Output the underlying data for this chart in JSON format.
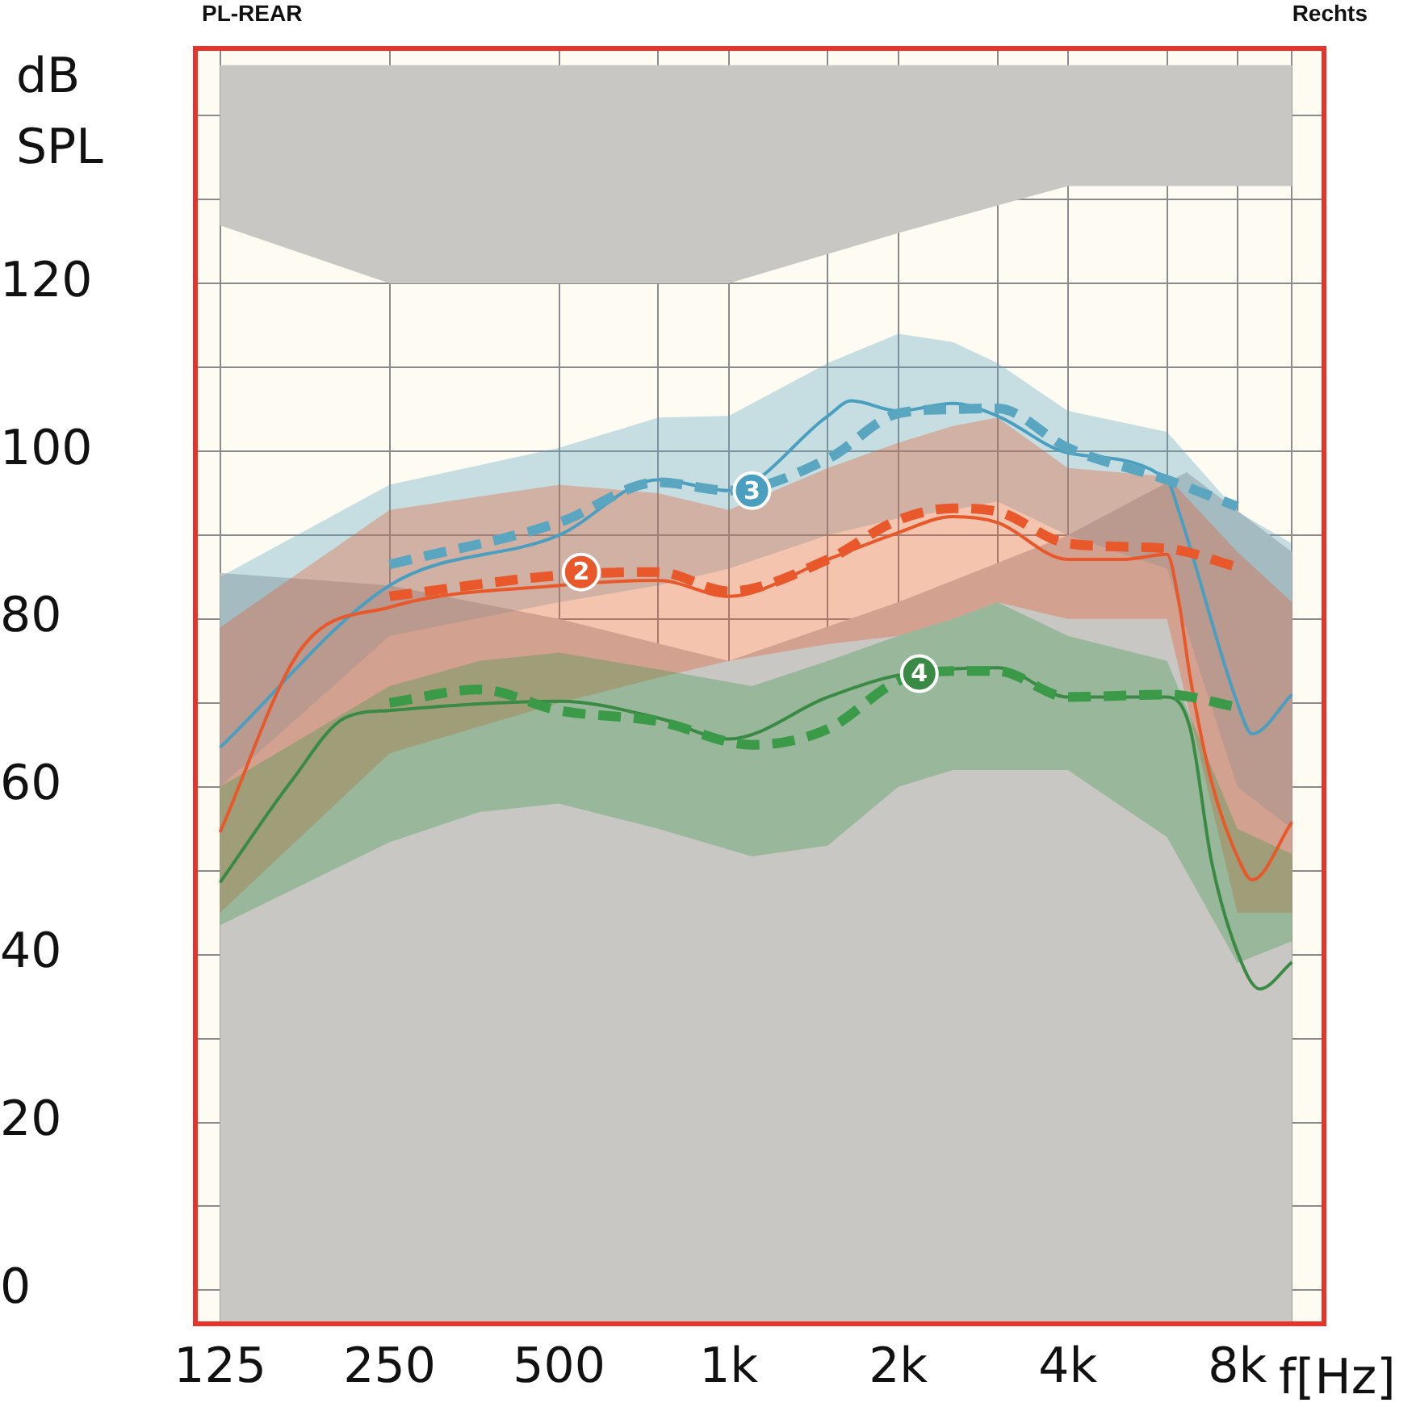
{
  "chart_data": {
    "type": "line",
    "title": "PL-REAR",
    "subtitle": "Rechts",
    "xlabel": "f[Hz]",
    "ylabel": "dB SPL",
    "log": "x",
    "grid": true,
    "legend": false,
    "marker": "none",
    "xlim": [
      113,
      11400
    ],
    "ylim": [
      -4,
      148
    ],
    "xticks": [
      125,
      250,
      500,
      {
        "value": 750,
        "label": null
      },
      {
        "value": 1000,
        "label": "1k"
      },
      {
        "value": 1500,
        "label": null
      },
      {
        "value": 2000,
        "label": "2k"
      },
      {
        "value": 3000,
        "label": null
      },
      {
        "value": 4000,
        "label": "4k"
      },
      {
        "value": 6000,
        "label": null
      },
      {
        "value": 8000,
        "label": "8k"
      },
      {
        "value": 10000,
        "label": null
      }
    ],
    "yticks": [
      0,
      {
        "value": 10,
        "label": null
      },
      20,
      {
        "value": 30,
        "label": null
      },
      40,
      {
        "value": 50,
        "label": null
      },
      60,
      {
        "value": 70,
        "label": null
      },
      80,
      {
        "value": 90,
        "label": null
      },
      100,
      {
        "value": 110,
        "label": null
      },
      120,
      {
        "value": 130,
        "label": null
      },
      {
        "value": 140,
        "label": null
      }
    ],
    "series": [
      {
        "type": "line",
        "color": "#c9c7c3",
        "x": [
          125,
          250,
          1000,
          2000,
          4000,
          10000
        ],
        "values": [
          null,
          null,
          null,
          null,
          null,
          null
        ],
        "lower": [
          126.9,
          120,
          120,
          126,
          131.6,
          131.6
        ],
        "upper": [
          146,
          146,
          146,
          146,
          146,
          146
        ]
      },
      {
        "type": "line",
        "color": "#c9c7c3",
        "x": [
          125,
          250,
          500,
          1000,
          2000,
          4000,
          6500,
          10000
        ],
        "values": [
          null,
          null,
          null,
          null,
          null,
          null,
          null,
          null
        ],
        "lower": [
          -4,
          -4,
          -4,
          -4,
          -4,
          -4,
          -4,
          -4
        ],
        "upper": [
          85.5,
          84,
          80,
          75,
          82,
          90,
          97.5,
          88
        ]
      },
      {
        "color": "#4a9fc0",
        "line_style": "solid",
        "x": [
          125,
          250,
          500,
          750,
          1000,
          1500,
          1650,
          2000,
          2500,
          3000,
          4000,
          6000,
          6300,
          8000,
          8500,
          10000
        ],
        "values": [
          64.7,
          84,
          90,
          96.6,
          95.3,
          104.2,
          106,
          104.8,
          105.7,
          104.2,
          99.8,
          96.6,
          92.8,
          70,
          66.3,
          71
        ]
      },
      {
        "color": "#5aa5c0",
        "line_style": "dashed",
        "x": [
          125,
          250,
          500,
          750,
          1000,
          1500,
          2000,
          2500,
          3000,
          4000,
          6000,
          8000,
          10000
        ],
        "values": [
          null,
          86.5,
          91.5,
          96.3,
          95.3,
          99.1,
          104.5,
          105,
          105.1,
          100.4,
          96.6,
          93.4,
          null
        ],
        "lower": [
          60,
          78,
          82,
          84,
          86,
          90,
          92,
          93,
          94,
          90,
          86,
          60,
          55
        ],
        "upper": [
          85,
          96,
          100.4,
          104,
          104.2,
          110.5,
          114,
          113,
          110.5,
          104.8,
          102.3,
          92.8,
          89
        ]
      },
      {
        "color": "#e8582a",
        "line_style": "solid",
        "x": [
          125,
          174,
          250,
          500,
          750,
          1000,
          1500,
          2000,
          2500,
          3000,
          4000,
          5000,
          6000,
          6300,
          6600,
          7200,
          8000,
          8500,
          10000
        ],
        "values": [
          54.6,
          76.4,
          81.4,
          84,
          84.6,
          82.7,
          87.1,
          90.3,
          92.2,
          91.5,
          87.1,
          87.1,
          87.7,
          82,
          73,
          60.6,
          51.7,
          48.9,
          55.8
        ]
      },
      {
        "color": "#e8582a",
        "line_style": "dashed",
        "x": [
          125,
          250,
          500,
          750,
          1000,
          1500,
          2000,
          2500,
          3000,
          4000,
          6000,
          8000,
          10000
        ],
        "values": [
          null,
          82.7,
          85.2,
          85.6,
          83.3,
          87.1,
          91.8,
          93.2,
          92.8,
          89,
          88.4,
          86.2,
          null
        ],
        "lower": [
          45,
          64,
          70,
          73,
          75,
          77,
          78,
          80,
          82,
          80,
          80,
          45,
          45
        ],
        "upper": [
          79,
          93,
          96,
          95,
          93,
          98,
          101,
          103,
          104,
          98,
          97,
          88,
          82
        ]
      },
      {
        "color": "#3a8a45",
        "line_style": "solid",
        "x": [
          125,
          167,
          208,
          250,
          500,
          750,
          1000,
          1500,
          2000,
          3000,
          4000,
          6000,
          6600,
          7200,
          8000,
          8770,
          10000
        ],
        "values": [
          48.6,
          60.6,
          68.2,
          69.1,
          70.2,
          68.2,
          65.7,
          70.7,
          73.3,
          74.2,
          70.7,
          70.7,
          66.9,
          51.1,
          40.3,
          35.9,
          39.1
        ]
      },
      {
        "color": "#3a9a48",
        "line_style": "dashed",
        "x": [
          125,
          250,
          361,
          500,
          750,
          1100,
          1500,
          2000,
          2500,
          3000,
          4000,
          6000,
          8000,
          10000
        ],
        "values": [
          null,
          70,
          71.6,
          69.1,
          67.8,
          65,
          66.9,
          72.6,
          73.8,
          73.8,
          70.7,
          71,
          69.5,
          null
        ],
        "lower": [
          43.5,
          53.4,
          57,
          58,
          55,
          51.7,
          53,
          60,
          62,
          62,
          62,
          54,
          39,
          41.6
        ],
        "upper": [
          60,
          72,
          75,
          76,
          74,
          72,
          75,
          78,
          80,
          82,
          78,
          75,
          55,
          52
        ]
      }
    ],
    "annotations": [
      {
        "text": "3",
        "x": 1100,
        "y": 95.3
      },
      {
        "text": "2",
        "x": 547,
        "y": 85.6
      },
      {
        "text": "4",
        "x": 2180,
        "y": 73.5
      }
    ]
  }
}
